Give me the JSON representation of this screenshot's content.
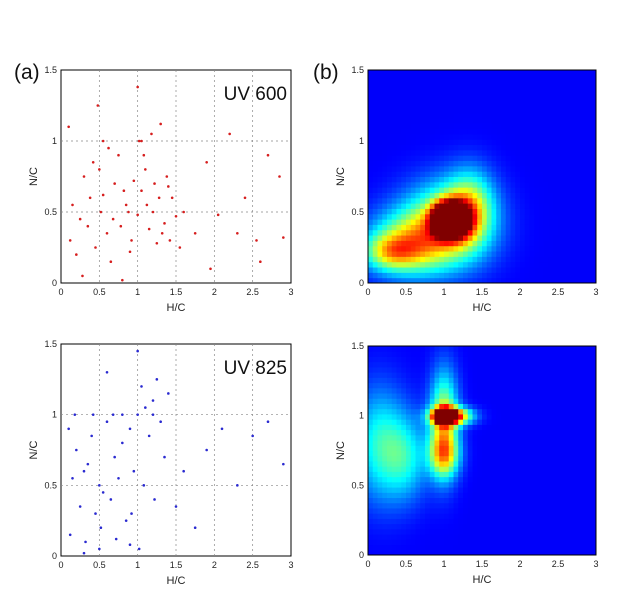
{
  "panel_labels": [
    "(a)",
    "(b)"
  ],
  "colors": {
    "red_points": "#d61e1e",
    "blue_points": "#2a2ad0",
    "heat_background": "#00008f"
  },
  "chart_data": [
    {
      "type": "scatter",
      "annotation": "UV 600",
      "panel": "(a)",
      "xlabel": "H/C",
      "ylabel": "N/C",
      "xlim": [
        0,
        3
      ],
      "ylim": [
        0,
        1.5
      ],
      "xticks": [
        "0",
        "0.5",
        "1",
        "1.5",
        "2",
        "2.5",
        "3"
      ],
      "yticks": [
        "0",
        "0.5",
        "1",
        "1.5"
      ],
      "grid": "dashed",
      "color": "#d61e1e",
      "x": [
        0.12,
        0.25,
        0.38,
        0.45,
        0.52,
        0.6,
        0.7,
        0.78,
        0.85,
        0.92,
        1.0,
        1.05,
        1.1,
        1.15,
        1.2,
        1.28,
        1.35,
        1.42,
        1.5,
        1.55,
        0.2,
        0.3,
        0.42,
        0.55,
        0.65,
        0.75,
        0.88,
        0.95,
        1.02,
        1.12,
        1.22,
        1.32,
        1.45,
        0.15,
        0.35,
        0.5,
        0.68,
        0.82,
        1.08,
        1.25,
        1.38,
        1.6,
        1.75,
        1.9,
        2.05,
        2.2,
        2.4,
        2.55,
        2.7,
        2.85,
        0.1,
        0.62,
        1.18,
        0.48,
        1.05,
        0.28,
        0.8,
        1.0,
        0.55,
        1.3,
        2.3,
        2.6,
        2.9,
        1.95,
        1.4,
        0.9
      ],
      "y": [
        0.3,
        0.45,
        0.6,
        0.25,
        0.5,
        0.35,
        0.7,
        0.4,
        0.55,
        0.3,
        0.48,
        0.65,
        0.8,
        0.38,
        0.5,
        0.6,
        0.42,
        0.3,
        0.47,
        0.25,
        0.2,
        0.75,
        0.85,
        0.62,
        0.15,
        0.9,
        0.5,
        0.72,
        1.0,
        0.55,
        0.7,
        0.35,
        0.6,
        0.55,
        0.4,
        0.8,
        0.45,
        0.65,
        0.9,
        0.28,
        0.75,
        0.5,
        0.35,
        0.85,
        0.48,
        1.05,
        0.6,
        0.3,
        0.9,
        0.75,
        1.1,
        0.95,
        1.05,
        1.25,
        1.0,
        0.05,
        0.02,
        1.38,
        1.0,
        1.12,
        0.35,
        0.15,
        0.32,
        0.1,
        0.68,
        0.22
      ]
    },
    {
      "type": "heatmap",
      "panel": "(b)",
      "xlabel": "H/C",
      "ylabel": "N/C",
      "xlim": [
        0,
        3
      ],
      "ylim": [
        0,
        1.5
      ],
      "xticks": [
        "0",
        "0.5",
        "1",
        "1.5",
        "2",
        "2.5",
        "3"
      ],
      "yticks": [
        "0",
        "0.5",
        "1",
        "1.5"
      ],
      "blobs": [
        {
          "x": 1.0,
          "y": 0.45,
          "w": 0.16,
          "h": 0.1,
          "intensity": 1.0
        },
        {
          "x": 1.15,
          "y": 0.45,
          "w": 0.2,
          "h": 0.12,
          "intensity": 0.95
        },
        {
          "x": 1.05,
          "y": 0.42,
          "w": 0.55,
          "h": 0.28,
          "intensity": 0.55
        },
        {
          "x": 0.55,
          "y": 0.28,
          "w": 0.55,
          "h": 0.22,
          "intensity": 0.45
        },
        {
          "x": 0.3,
          "y": 0.22,
          "w": 0.35,
          "h": 0.12,
          "intensity": 0.35
        },
        {
          "x": 1.35,
          "y": 0.55,
          "w": 0.3,
          "h": 0.25,
          "intensity": 0.35
        }
      ]
    },
    {
      "type": "scatter",
      "annotation": "UV 825",
      "xlabel": "H/C",
      "ylabel": "N/C",
      "xlim": [
        0,
        3
      ],
      "ylim": [
        0,
        1.5
      ],
      "xticks": [
        "0",
        "0.5",
        "1",
        "1.5",
        "2",
        "2.5",
        "3"
      ],
      "yticks": [
        "0",
        "0.5",
        "1",
        "1.5"
      ],
      "grid": "dashed",
      "color": "#2a2ad0",
      "x": [
        0.1,
        0.2,
        0.3,
        0.4,
        0.5,
        0.6,
        0.7,
        0.8,
        0.9,
        1.0,
        1.1,
        1.2,
        1.3,
        1.4,
        0.15,
        0.35,
        0.55,
        0.75,
        0.95,
        1.05,
        1.25,
        0.25,
        0.45,
        0.65,
        0.85,
        1.15,
        0.12,
        0.32,
        0.52,
        0.72,
        0.92,
        1.02,
        1.22,
        1.5,
        1.6,
        1.75,
        1.9,
        2.1,
        2.3,
        2.5,
        2.7,
        2.9,
        0.6,
        0.8,
        1.0,
        1.2,
        0.3,
        0.5,
        0.9,
        1.35,
        0.18,
        0.42,
        0.68,
        1.08
      ],
      "y": [
        0.9,
        0.75,
        0.6,
        0.85,
        0.5,
        0.95,
        0.7,
        0.8,
        0.9,
        1.0,
        1.05,
        1.1,
        0.95,
        1.15,
        0.55,
        0.65,
        0.45,
        0.55,
        0.6,
        1.2,
        1.25,
        0.35,
        0.3,
        0.4,
        0.25,
        0.85,
        0.15,
        0.1,
        0.2,
        0.12,
        0.3,
        0.05,
        0.4,
        0.35,
        0.6,
        0.2,
        0.75,
        0.9,
        0.5,
        0.85,
        0.95,
        0.65,
        1.3,
        1.0,
        1.45,
        1.0,
        0.02,
        0.05,
        0.08,
        0.7,
        1.0,
        1.0,
        1.0,
        0.5
      ]
    },
    {
      "type": "heatmap",
      "xlabel": "H/C",
      "ylabel": "N/C",
      "xlim": [
        0,
        3
      ],
      "ylim": [
        0,
        1.5
      ],
      "xticks": [
        "0",
        "0.5",
        "1",
        "1.5",
        "2",
        "2.5",
        "3"
      ],
      "yticks": [
        "0",
        "0.5",
        "1",
        "1.5"
      ],
      "blobs": [
        {
          "x": 1.0,
          "y": 1.0,
          "w": 0.12,
          "h": 0.05,
          "intensity": 1.0
        },
        {
          "x": 1.1,
          "y": 1.0,
          "w": 0.25,
          "h": 0.06,
          "intensity": 0.85
        },
        {
          "x": 1.0,
          "y": 0.95,
          "w": 0.18,
          "h": 0.35,
          "intensity": 0.55
        },
        {
          "x": 1.0,
          "y": 0.72,
          "w": 0.2,
          "h": 0.15,
          "intensity": 0.4
        },
        {
          "x": 0.15,
          "y": 0.8,
          "w": 0.35,
          "h": 0.4,
          "intensity": 0.3
        },
        {
          "x": 0.5,
          "y": 0.7,
          "w": 0.3,
          "h": 0.3,
          "intensity": 0.25
        }
      ]
    }
  ]
}
